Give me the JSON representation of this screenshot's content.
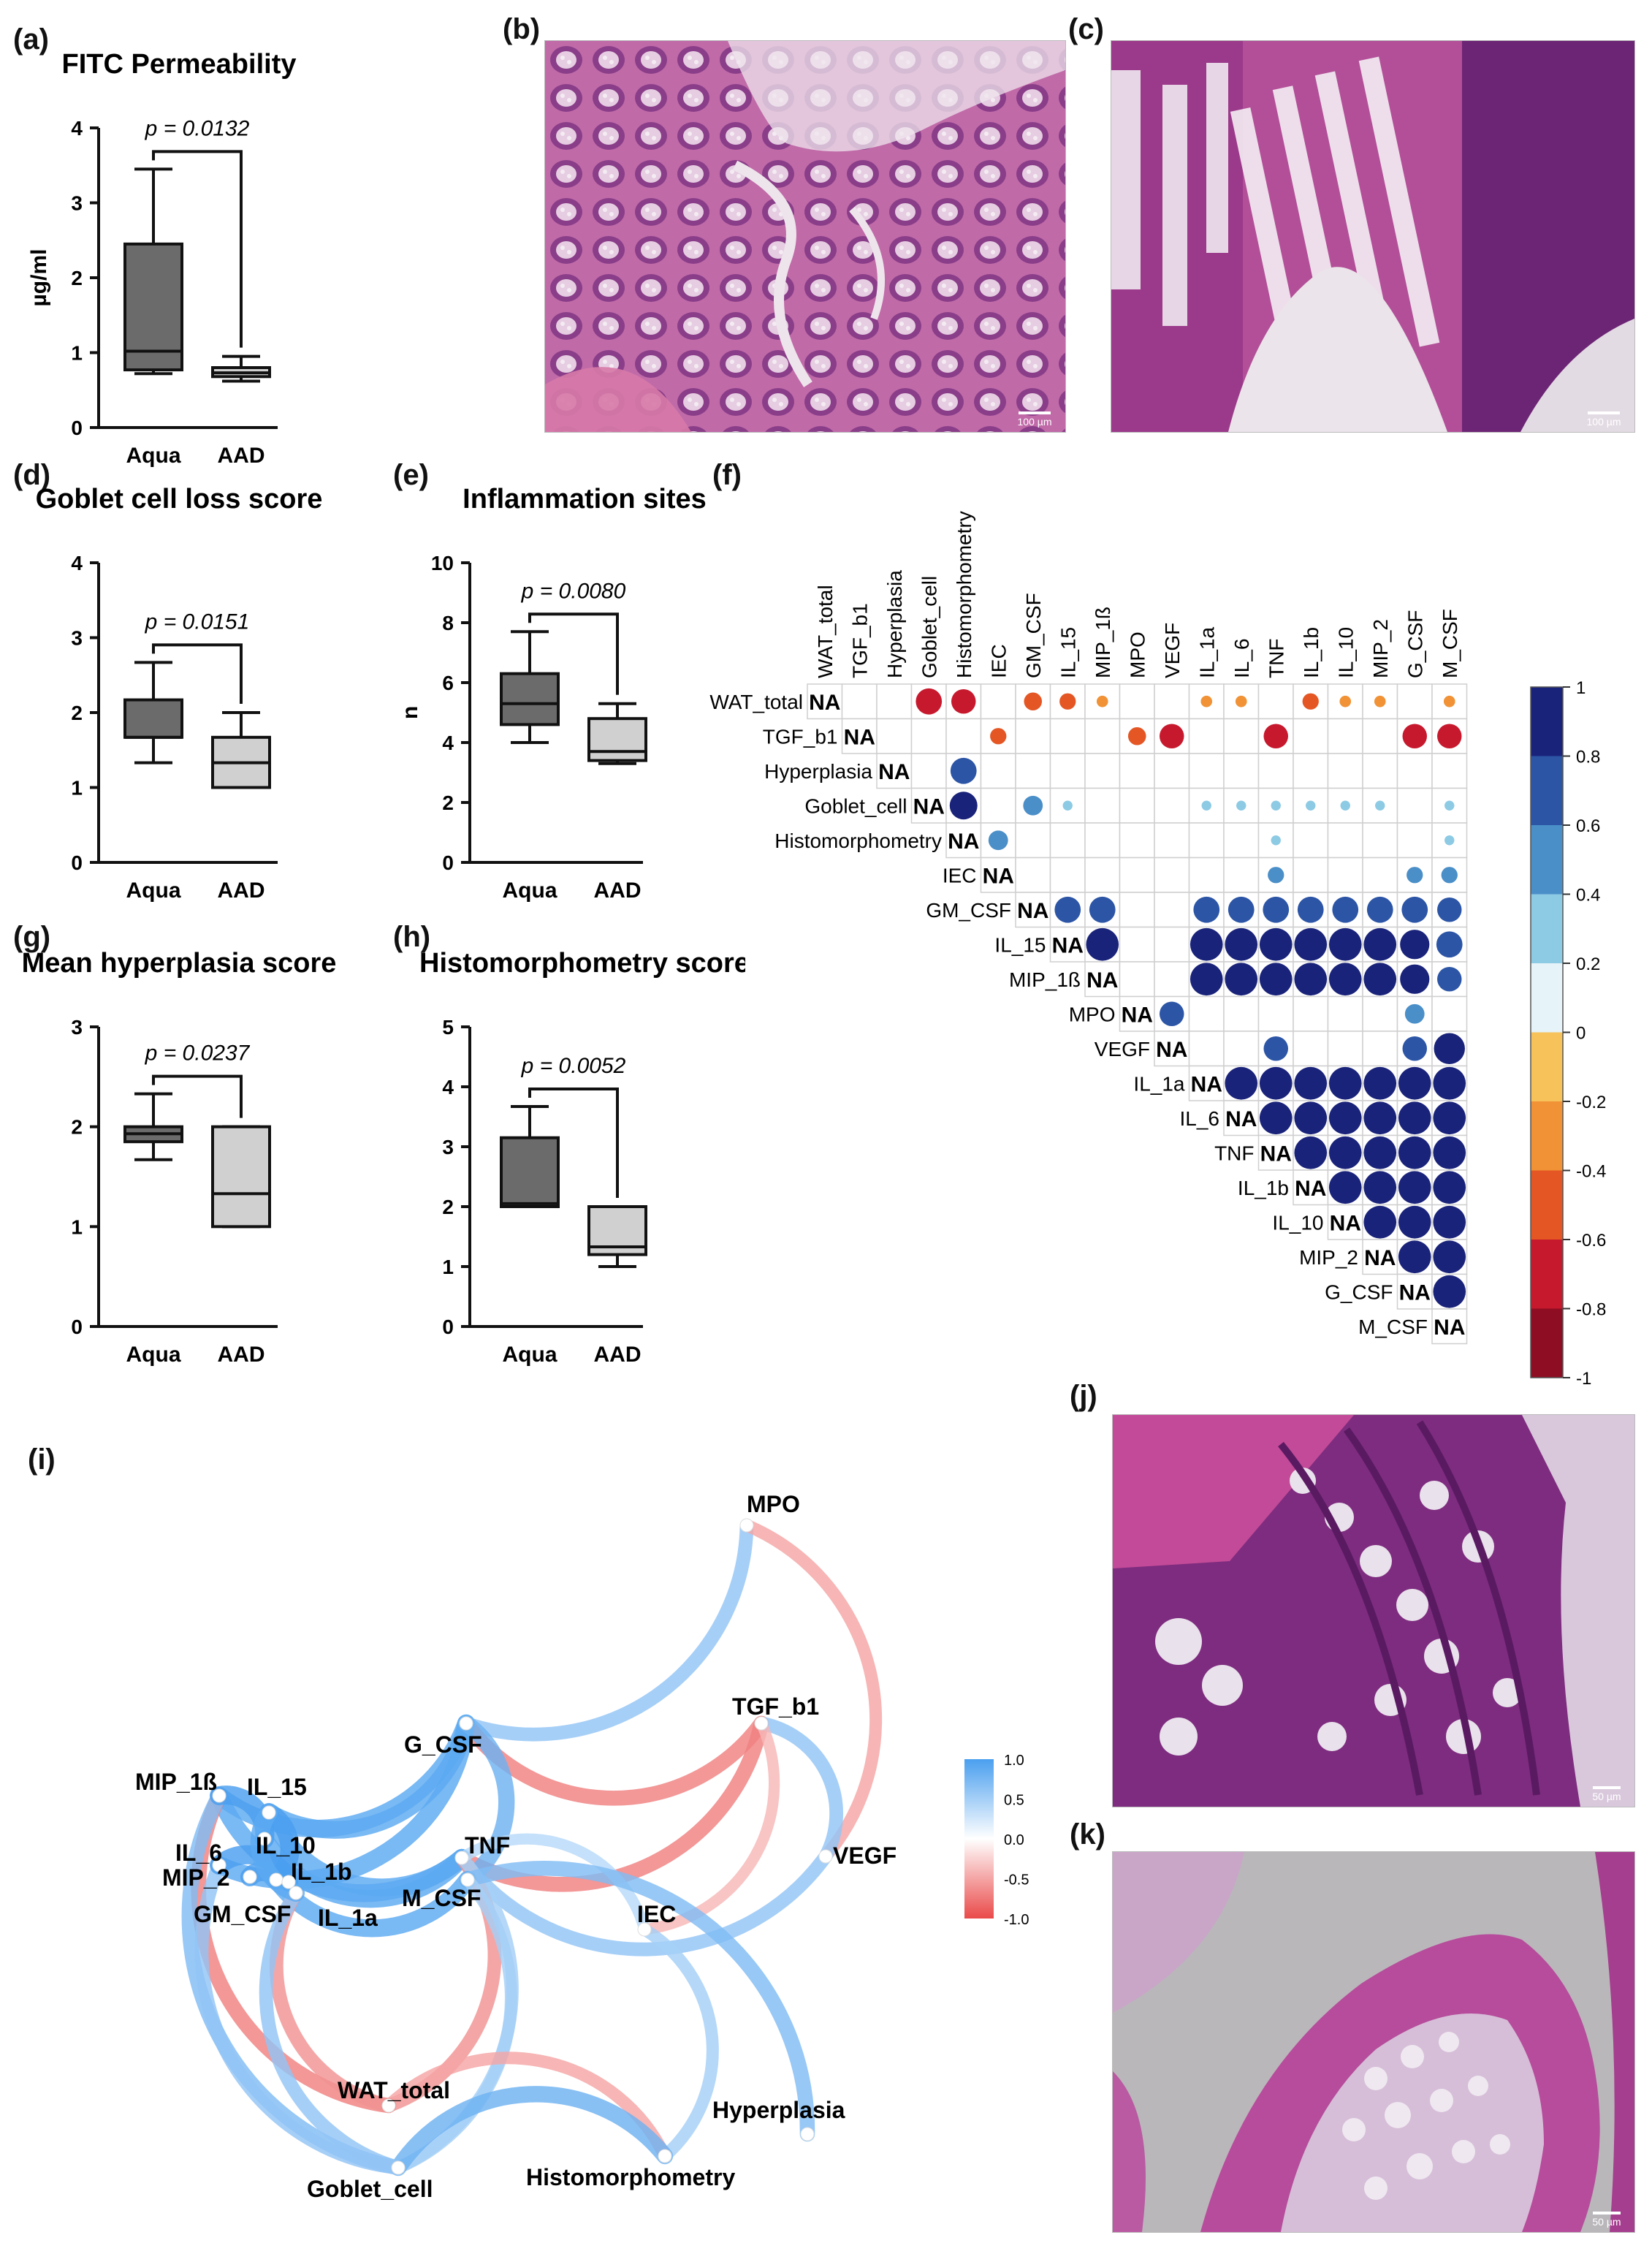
{
  "panel_labels": {
    "a": "(a)",
    "b": "(b)",
    "c": "(c)",
    "d": "(d)",
    "e": "(e)",
    "f": "(f)",
    "g": "(g)",
    "h": "(h)",
    "i": "(i)",
    "j": "(j)",
    "k": "(k)"
  },
  "scale_bars": {
    "b": "100 µm",
    "c": "100 µm",
    "j": "50 µm",
    "k": "50 µm"
  },
  "colors": {
    "aqua_box": "#6b6b6b",
    "aad_box": "#d0d0d0",
    "pos": "#1f2a7a",
    "neg": "#b2182b",
    "net_pos": "#4a9fef",
    "net_neg": "#ea4a4a"
  },
  "chart_data": [
    {
      "id": "a",
      "type": "box",
      "title": "FITC Permeability",
      "ylabel": "µg/ml",
      "ylim": [
        0,
        4
      ],
      "yticks": [
        0,
        1,
        2,
        3,
        4
      ],
      "categories": [
        "Aqua",
        "AAD"
      ],
      "pvalue": "p = 0.0132",
      "boxes": [
        {
          "min": 0.72,
          "q1": 0.77,
          "median": 1.02,
          "q3": 2.45,
          "max": 3.45
        },
        {
          "min": 0.62,
          "q1": 0.68,
          "median": 0.73,
          "q3": 0.8,
          "max": 0.95
        }
      ]
    },
    {
      "id": "d",
      "type": "box",
      "title": "Goblet cell loss score",
      "ylabel": "",
      "ylim": [
        0,
        4
      ],
      "yticks": [
        0,
        1,
        2,
        3,
        4
      ],
      "categories": [
        "Aqua",
        "AAD"
      ],
      "pvalue": "p = 0.0151",
      "boxes": [
        {
          "min": 1.33,
          "q1": 1.67,
          "median": 1.67,
          "q3": 2.17,
          "max": 2.67
        },
        {
          "min": 1.0,
          "q1": 1.0,
          "median": 1.33,
          "q3": 1.67,
          "max": 2.0
        }
      ]
    },
    {
      "id": "e",
      "type": "box",
      "title": "Inflammation sites",
      "ylabel": "n",
      "ylim": [
        0,
        10
      ],
      "yticks": [
        0,
        2,
        4,
        6,
        8,
        10
      ],
      "categories": [
        "Aqua",
        "AAD"
      ],
      "pvalue": "p = 0.0080",
      "boxes": [
        {
          "min": 4.0,
          "q1": 4.6,
          "median": 5.3,
          "q3": 6.3,
          "max": 7.7
        },
        {
          "min": 3.3,
          "q1": 3.4,
          "median": 3.7,
          "q3": 4.8,
          "max": 5.3
        }
      ]
    },
    {
      "id": "g",
      "type": "box",
      "title": "Mean hyperplasia score",
      "ylabel": "",
      "ylim": [
        0,
        3
      ],
      "yticks": [
        0,
        1,
        2,
        3
      ],
      "categories": [
        "Aqua",
        "AAD"
      ],
      "pvalue": "p = 0.0237",
      "boxes": [
        {
          "min": 1.67,
          "q1": 1.85,
          "median": 1.93,
          "q3": 2.0,
          "max": 2.33
        },
        {
          "min": 1.0,
          "q1": 1.0,
          "median": 1.33,
          "q3": 2.0,
          "max": 2.0
        }
      ]
    },
    {
      "id": "h",
      "type": "box",
      "title": "Histomorphometry score",
      "ylabel": "",
      "ylim": [
        0,
        5
      ],
      "yticks": [
        0,
        1,
        2,
        3,
        4,
        5
      ],
      "categories": [
        "Aqua",
        "AAD"
      ],
      "pvalue": "p = 0.0052",
      "boxes": [
        {
          "min": 2.0,
          "q1": 2.0,
          "median": 2.05,
          "q3": 3.15,
          "max": 3.67
        },
        {
          "min": 1.0,
          "q1": 1.2,
          "median": 1.33,
          "q3": 2.0,
          "max": 2.0
        }
      ]
    },
    {
      "id": "f",
      "type": "heatmap",
      "variables": [
        "WAT_total",
        "TGF_b1",
        "Hyperplasia",
        "Goblet_cell",
        "Histomorphometry",
        "IEC",
        "GM_CSF",
        "IL_15",
        "MIP_1ß",
        "MPO",
        "VEGF",
        "IL_1a",
        "IL_6",
        "TNF",
        "IL_1b",
        "IL_10",
        "MIP_2",
        "G_CSF",
        "M_CSF"
      ],
      "diag_label": "NA",
      "colorbar": [
        1,
        0.8,
        0.6,
        0.4,
        0.2,
        0,
        -0.2,
        -0.4,
        -0.6,
        -0.8,
        -1
      ],
      "cells": [
        [
          0,
          3,
          -0.8
        ],
        [
          0,
          4,
          -0.75
        ],
        [
          0,
          6,
          -0.55
        ],
        [
          0,
          7,
          -0.5
        ],
        [
          0,
          8,
          -0.35
        ],
        [
          0,
          11,
          -0.35
        ],
        [
          0,
          12,
          -0.35
        ],
        [
          0,
          14,
          -0.5
        ],
        [
          0,
          15,
          -0.35
        ],
        [
          0,
          16,
          -0.35
        ],
        [
          0,
          18,
          -0.35
        ],
        [
          1,
          5,
          -0.5
        ],
        [
          1,
          9,
          -0.55
        ],
        [
          1,
          10,
          -0.75
        ],
        [
          1,
          13,
          -0.75
        ],
        [
          1,
          17,
          -0.75
        ],
        [
          1,
          18,
          -0.75
        ],
        [
          2,
          4,
          0.8
        ],
        [
          3,
          4,
          0.85
        ],
        [
          3,
          6,
          0.6
        ],
        [
          3,
          7,
          0.3
        ],
        [
          3,
          11,
          0.3
        ],
        [
          3,
          12,
          0.3
        ],
        [
          3,
          13,
          0.3
        ],
        [
          3,
          14,
          0.3
        ],
        [
          3,
          15,
          0.3
        ],
        [
          3,
          16,
          0.3
        ],
        [
          3,
          18,
          0.3
        ],
        [
          4,
          5,
          0.6
        ],
        [
          4,
          13,
          0.3
        ],
        [
          4,
          18,
          0.3
        ],
        [
          5,
          13,
          0.5
        ],
        [
          5,
          17,
          0.5
        ],
        [
          5,
          18,
          0.5
        ],
        [
          6,
          7,
          0.8
        ],
        [
          6,
          8,
          0.8
        ],
        [
          6,
          11,
          0.8
        ],
        [
          6,
          12,
          0.8
        ],
        [
          6,
          13,
          0.8
        ],
        [
          6,
          14,
          0.8
        ],
        [
          6,
          15,
          0.8
        ],
        [
          6,
          16,
          0.8
        ],
        [
          6,
          17,
          0.8
        ],
        [
          6,
          18,
          0.75
        ],
        [
          7,
          8,
          1
        ],
        [
          7,
          11,
          1
        ],
        [
          7,
          12,
          1
        ],
        [
          7,
          13,
          1
        ],
        [
          7,
          14,
          1
        ],
        [
          7,
          15,
          1
        ],
        [
          7,
          16,
          1
        ],
        [
          7,
          17,
          0.9
        ],
        [
          7,
          18,
          0.8
        ],
        [
          8,
          11,
          1
        ],
        [
          8,
          12,
          1
        ],
        [
          8,
          13,
          1
        ],
        [
          8,
          14,
          1
        ],
        [
          8,
          15,
          1
        ],
        [
          8,
          16,
          1
        ],
        [
          8,
          17,
          0.9
        ],
        [
          8,
          18,
          0.75
        ],
        [
          9,
          10,
          0.75
        ],
        [
          9,
          17,
          0.6
        ],
        [
          10,
          13,
          0.75
        ],
        [
          10,
          17,
          0.75
        ],
        [
          10,
          18,
          0.95
        ],
        [
          11,
          12,
          1
        ],
        [
          11,
          13,
          1
        ],
        [
          11,
          14,
          1
        ],
        [
          11,
          15,
          1
        ],
        [
          11,
          16,
          1
        ],
        [
          11,
          17,
          1
        ],
        [
          11,
          18,
          1
        ],
        [
          12,
          13,
          1
        ],
        [
          12,
          14,
          1
        ],
        [
          12,
          15,
          1
        ],
        [
          12,
          16,
          1
        ],
        [
          12,
          17,
          1
        ],
        [
          12,
          18,
          1
        ],
        [
          13,
          14,
          1
        ],
        [
          13,
          15,
          1
        ],
        [
          13,
          16,
          1
        ],
        [
          13,
          17,
          1
        ],
        [
          13,
          18,
          1
        ],
        [
          14,
          15,
          1
        ],
        [
          14,
          16,
          1
        ],
        [
          14,
          17,
          1
        ],
        [
          14,
          18,
          1
        ],
        [
          15,
          16,
          1
        ],
        [
          15,
          17,
          1
        ],
        [
          15,
          18,
          1
        ],
        [
          16,
          17,
          1
        ],
        [
          16,
          18,
          1
        ],
        [
          17,
          18,
          1
        ]
      ]
    },
    {
      "id": "i",
      "type": "network",
      "legend_ticks": [
        "1.0",
        "0.5",
        "0.0",
        "-0.5",
        "-1.0"
      ],
      "nodes": [
        {
          "id": "MPO",
          "label": "MPO"
        },
        {
          "id": "TGF_b1",
          "label": "TGF_b1"
        },
        {
          "id": "VEGF",
          "label": "VEGF"
        },
        {
          "id": "G_CSF",
          "label": "G_CSF"
        },
        {
          "id": "MIP_1ß",
          "label": "MIP_1ß"
        },
        {
          "id": "IL_15",
          "label": "IL_15"
        },
        {
          "id": "IL_6",
          "label": "IL_6"
        },
        {
          "id": "IL_10",
          "label": "IL_10"
        },
        {
          "id": "MIP_2",
          "label": "MIP_2"
        },
        {
          "id": "IL_1b",
          "label": "IL_1b"
        },
        {
          "id": "GM_CSF",
          "label": "GM_CSF"
        },
        {
          "id": "IL_1a",
          "label": "IL_1a"
        },
        {
          "id": "TNF",
          "label": "TNF"
        },
        {
          "id": "M_CSF",
          "label": "M_CSF"
        },
        {
          "id": "IEC",
          "label": "IEC"
        },
        {
          "id": "WAT_total",
          "label": "WAT_total"
        },
        {
          "id": "Goblet_cell",
          "label": "Goblet_cell"
        },
        {
          "id": "Histomorphometry",
          "label": "Histomorphometry"
        },
        {
          "id": "Hyperplasia",
          "label": "Hyperplasia"
        }
      ],
      "edges": [
        [
          "MPO",
          "G_CSF",
          0.6
        ],
        [
          "MPO",
          "VEGF",
          -0.5
        ],
        [
          "TGF_b1",
          "G_CSF",
          -0.7
        ],
        [
          "TGF_b1",
          "TNF",
          -0.7
        ],
        [
          "TGF_b1",
          "VEGF",
          0.6
        ],
        [
          "TGF_b1",
          "IEC",
          -0.4
        ],
        [
          "VEGF",
          "TNF",
          0.6
        ],
        [
          "G_CSF",
          "IL_15",
          0.9
        ],
        [
          "G_CSF",
          "MIP_1ß",
          0.9
        ],
        [
          "G_CSF",
          "IL_6",
          0.9
        ],
        [
          "G_CSF",
          "M_CSF",
          0.8
        ],
        [
          "TNF",
          "IL_15",
          0.9
        ],
        [
          "TNF",
          "IL_10",
          0.9
        ],
        [
          "TNF",
          "MIP_1ß",
          0.9
        ],
        [
          "TNF",
          "WAT_total",
          -0.6
        ],
        [
          "TNF",
          "Goblet_cell",
          0.5
        ],
        [
          "TNF",
          "IEC",
          0.4
        ],
        [
          "M_CSF",
          "IL_1b",
          0.9
        ],
        [
          "M_CSF",
          "Hyperplasia",
          0.7
        ],
        [
          "M_CSF",
          "Goblet_cell",
          0.5
        ],
        [
          "IEC",
          "Histomorphometry",
          0.5
        ],
        [
          "WAT_total",
          "Histomorphometry",
          -0.5
        ],
        [
          "WAT_total",
          "MIP_1ß",
          -0.7
        ],
        [
          "WAT_total",
          "GM_CSF",
          -0.6
        ],
        [
          "Goblet_cell",
          "Histomorphometry",
          0.8
        ],
        [
          "Goblet_cell",
          "MIP_1ß",
          0.7
        ],
        [
          "Goblet_cell",
          "IL_6",
          0.6
        ],
        [
          "Goblet_cell",
          "GM_CSF",
          0.6
        ],
        [
          "IL_15",
          "IL_1b",
          1
        ],
        [
          "MIP_1ß",
          "IL_10",
          1
        ],
        [
          "IL_6",
          "IL_1a",
          1
        ],
        [
          "MIP_2",
          "IL_1b",
          1
        ],
        [
          "GM_CSF",
          "IL_15",
          0.9
        ]
      ]
    }
  ]
}
